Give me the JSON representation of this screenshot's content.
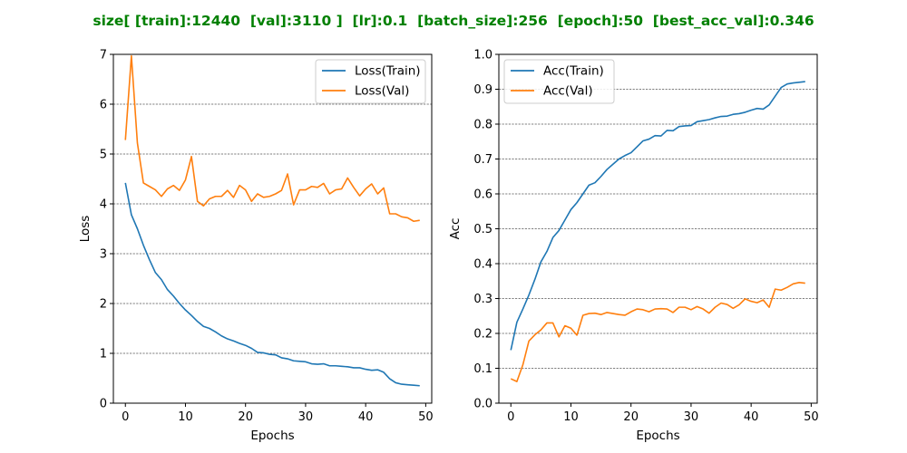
{
  "figure": {
    "title": "size[ [train]:12440  [val]:3110 ]  [lr]:0.1  [batch_size]:256  [epoch]:50  [best_acc_val]:0.346",
    "title_color": "#008000"
  },
  "chart_data": [
    {
      "type": "line",
      "title": "",
      "xlabel": "Epochs",
      "ylabel": "Loss",
      "xlim": [
        -2,
        51
      ],
      "ylim": [
        0,
        7
      ],
      "xticks": [
        0,
        10,
        20,
        30,
        40,
        50
      ],
      "yticks": [
        0,
        1,
        2,
        3,
        4,
        5,
        6,
        7
      ],
      "grid": "horizontal dashed",
      "legend_position": "top-right",
      "series": [
        {
          "name": "Loss(Train)",
          "color": "#1f77b4",
          "x": [
            0,
            1,
            2,
            3,
            4,
            5,
            6,
            7,
            8,
            9,
            10,
            11,
            12,
            13,
            14,
            15,
            16,
            17,
            18,
            19,
            20,
            21,
            22,
            23,
            24,
            25,
            26,
            27,
            28,
            29,
            30,
            31,
            32,
            33,
            34,
            35,
            36,
            37,
            38,
            39,
            40,
            41,
            42,
            43,
            44,
            45,
            46,
            47,
            48,
            49
          ],
          "values": [
            4.42,
            3.78,
            3.5,
            3.17,
            2.88,
            2.62,
            2.48,
            2.28,
            2.15,
            2.0,
            1.87,
            1.76,
            1.64,
            1.54,
            1.5,
            1.43,
            1.35,
            1.29,
            1.25,
            1.2,
            1.16,
            1.1,
            1.02,
            1.01,
            0.98,
            0.97,
            0.91,
            0.89,
            0.85,
            0.84,
            0.83,
            0.79,
            0.78,
            0.79,
            0.75,
            0.75,
            0.74,
            0.73,
            0.71,
            0.71,
            0.68,
            0.66,
            0.67,
            0.62,
            0.49,
            0.41,
            0.38,
            0.37,
            0.36,
            0.35
          ]
        },
        {
          "name": "Loss(Val)",
          "color": "#ff7f0e",
          "x": [
            0,
            1,
            2,
            3,
            4,
            5,
            6,
            7,
            8,
            9,
            10,
            11,
            12,
            13,
            14,
            15,
            16,
            17,
            18,
            19,
            20,
            21,
            22,
            23,
            24,
            25,
            26,
            27,
            28,
            29,
            30,
            31,
            32,
            33,
            34,
            35,
            36,
            37,
            38,
            39,
            40,
            41,
            42,
            43,
            44,
            45,
            46,
            47,
            48,
            49
          ],
          "values": [
            5.28,
            6.97,
            5.22,
            4.42,
            4.35,
            4.28,
            4.15,
            4.3,
            4.37,
            4.27,
            4.48,
            4.95,
            4.05,
            3.96,
            4.1,
            4.15,
            4.15,
            4.27,
            4.13,
            4.37,
            4.28,
            4.05,
            4.2,
            4.13,
            4.15,
            4.2,
            4.27,
            4.6,
            3.98,
            4.28,
            4.28,
            4.35,
            4.33,
            4.41,
            4.2,
            4.28,
            4.3,
            4.52,
            4.33,
            4.16,
            4.3,
            4.4,
            4.2,
            4.32,
            3.8,
            3.8,
            3.74,
            3.72,
            3.65,
            3.67
          ]
        }
      ]
    },
    {
      "type": "line",
      "title": "",
      "xlabel": "Epochs",
      "ylabel": "Acc",
      "xlim": [
        -2,
        51
      ],
      "ylim": [
        0,
        1.0
      ],
      "xticks": [
        0,
        10,
        20,
        30,
        40,
        50
      ],
      "yticks": [
        0.0,
        0.1,
        0.2,
        0.3,
        0.4,
        0.5,
        0.6,
        0.7,
        0.8,
        0.9,
        1.0
      ],
      "grid": "horizontal dashed",
      "legend_position": "top-left",
      "series": [
        {
          "name": "Acc(Train)",
          "color": "#1f77b4",
          "x": [
            0,
            1,
            2,
            3,
            4,
            5,
            6,
            7,
            8,
            9,
            10,
            11,
            12,
            13,
            14,
            15,
            16,
            17,
            18,
            19,
            20,
            21,
            22,
            23,
            24,
            25,
            26,
            27,
            28,
            29,
            30,
            31,
            32,
            33,
            34,
            35,
            36,
            37,
            38,
            39,
            40,
            41,
            42,
            43,
            44,
            45,
            46,
            47,
            48,
            49
          ],
          "values": [
            0.152,
            0.232,
            0.27,
            0.31,
            0.355,
            0.405,
            0.435,
            0.475,
            0.495,
            0.525,
            0.555,
            0.575,
            0.6,
            0.625,
            0.632,
            0.65,
            0.67,
            0.685,
            0.7,
            0.71,
            0.718,
            0.735,
            0.752,
            0.757,
            0.767,
            0.766,
            0.782,
            0.781,
            0.793,
            0.795,
            0.796,
            0.807,
            0.81,
            0.813,
            0.818,
            0.822,
            0.823,
            0.828,
            0.83,
            0.834,
            0.84,
            0.845,
            0.843,
            0.855,
            0.88,
            0.905,
            0.915,
            0.918,
            0.92,
            0.922
          ]
        },
        {
          "name": "Acc(Val)",
          "color": "#ff7f0e",
          "x": [
            0,
            1,
            2,
            3,
            4,
            5,
            6,
            7,
            8,
            9,
            10,
            11,
            12,
            13,
            14,
            15,
            16,
            17,
            18,
            19,
            20,
            21,
            22,
            23,
            24,
            25,
            26,
            27,
            28,
            29,
            30,
            31,
            32,
            33,
            34,
            35,
            36,
            37,
            38,
            39,
            40,
            41,
            42,
            43,
            44,
            45,
            46,
            47,
            48,
            49
          ],
          "values": [
            0.07,
            0.062,
            0.11,
            0.178,
            0.196,
            0.21,
            0.23,
            0.23,
            0.19,
            0.222,
            0.215,
            0.195,
            0.252,
            0.257,
            0.258,
            0.254,
            0.26,
            0.257,
            0.254,
            0.252,
            0.262,
            0.27,
            0.268,
            0.262,
            0.27,
            0.271,
            0.27,
            0.26,
            0.275,
            0.275,
            0.268,
            0.277,
            0.27,
            0.258,
            0.275,
            0.287,
            0.283,
            0.272,
            0.282,
            0.299,
            0.292,
            0.288,
            0.296,
            0.275,
            0.327,
            0.324,
            0.332,
            0.342,
            0.346,
            0.344
          ]
        }
      ]
    }
  ]
}
